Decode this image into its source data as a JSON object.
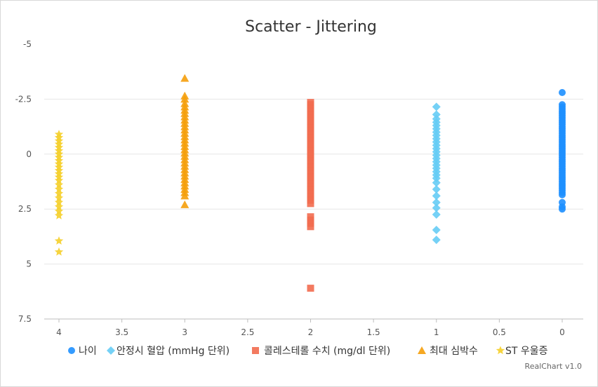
{
  "chart_data": {
    "type": "scatter",
    "title": "Scatter - Jittering",
    "credit": "RealChart v1.0",
    "x_axis": {
      "min": 0,
      "max": 4,
      "reversed": true,
      "ticks": [
        "4",
        "3.5",
        "3",
        "2.5",
        "2",
        "1.5",
        "1",
        "0.5",
        "0"
      ]
    },
    "y_axis": {
      "min": -5,
      "max": 7.5,
      "reversed": true,
      "ticks": [
        "-5",
        "-2.5",
        "0",
        "2.5",
        "5",
        "7.5"
      ]
    },
    "grid": true,
    "legend_position": "bottom",
    "series": [
      {
        "name": "나이",
        "color": "#1E90FF",
        "marker": "circle",
        "x": 0,
        "values": [
          -2.8,
          -2.25,
          -2.15,
          -2.05,
          -1.95,
          -1.85,
          -1.75,
          -1.65,
          -1.55,
          -1.45,
          -1.35,
          -1.25,
          -1.15,
          -1.05,
          -0.95,
          -0.85,
          -0.75,
          -0.65,
          -0.55,
          -0.45,
          -0.35,
          -0.25,
          -0.15,
          -0.05,
          0.05,
          0.15,
          0.25,
          0.35,
          0.45,
          0.55,
          0.65,
          0.75,
          0.85,
          0.95,
          1.05,
          1.15,
          1.25,
          1.35,
          1.45,
          1.55,
          1.65,
          1.75,
          1.85,
          2.2,
          2.4,
          2.5
        ]
      },
      {
        "name": "안정시 혈압 (mmHg 단위)",
        "color": "#66CCF5",
        "marker": "diamond",
        "x": 1,
        "values": [
          -2.15,
          -1.8,
          -1.6,
          -1.45,
          -1.3,
          -1.15,
          -1.0,
          -0.85,
          -0.7,
          -0.55,
          -0.4,
          -0.25,
          -0.1,
          0.05,
          0.2,
          0.35,
          0.5,
          0.65,
          0.8,
          0.95,
          1.1,
          1.3,
          1.6,
          1.9,
          2.2,
          2.45,
          2.75,
          3.45,
          3.9
        ]
      },
      {
        "name": "콜레스테롤 수치 (mg/dl 단위)",
        "color": "#F26B4F",
        "marker": "square",
        "x": 2,
        "values": [
          -2.35,
          -2.25,
          -2.1,
          -1.95,
          -1.8,
          -1.65,
          -1.5,
          -1.35,
          -1.2,
          -1.05,
          -0.9,
          -0.75,
          -0.6,
          -0.45,
          -0.3,
          -0.15,
          0.0,
          0.15,
          0.3,
          0.45,
          0.6,
          0.75,
          0.9,
          1.05,
          1.2,
          1.35,
          1.5,
          1.65,
          1.8,
          1.95,
          2.1,
          2.25,
          2.85,
          3.0,
          3.15,
          3.3,
          6.1
        ]
      },
      {
        "name": "최대 심박수",
        "color": "#F59E0B",
        "marker": "triangle",
        "x": 3,
        "values": [
          -3.45,
          -2.65,
          -2.5,
          -2.3,
          -2.15,
          -2.0,
          -1.85,
          -1.7,
          -1.55,
          -1.4,
          -1.25,
          -1.1,
          -0.95,
          -0.8,
          -0.65,
          -0.5,
          -0.35,
          -0.2,
          -0.05,
          0.1,
          0.25,
          0.4,
          0.55,
          0.7,
          0.85,
          1.0,
          1.15,
          1.3,
          1.45,
          1.6,
          1.75,
          1.9,
          2.3
        ]
      },
      {
        "name": "ST 우울증",
        "color": "#F5CF2A",
        "marker": "star",
        "x": 4,
        "values": [
          -0.9,
          -0.75,
          -0.6,
          -0.45,
          -0.3,
          -0.15,
          0.0,
          0.15,
          0.3,
          0.45,
          0.6,
          0.75,
          0.9,
          1.05,
          1.2,
          1.4,
          1.6,
          1.8,
          2.0,
          2.2,
          2.4,
          2.6,
          2.8,
          3.95,
          4.45
        ]
      }
    ]
  }
}
